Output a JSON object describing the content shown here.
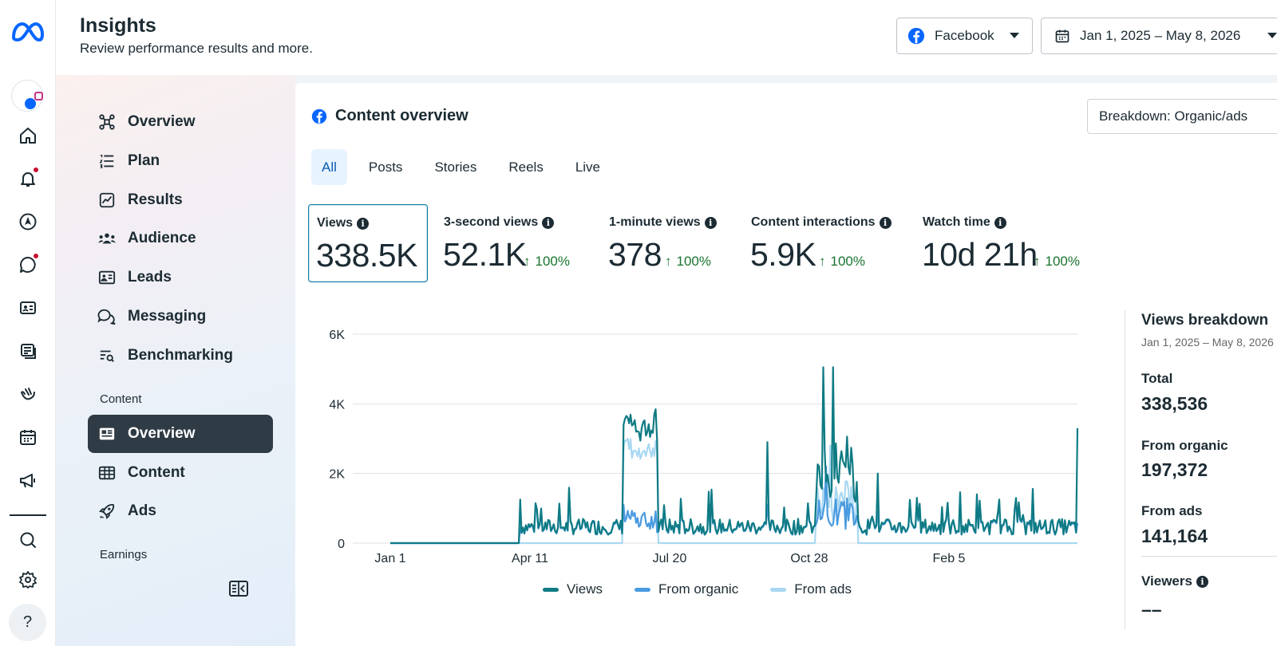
{
  "header": {
    "title": "Insights",
    "subtitle": "Review performance results and more.",
    "platform_label": "Facebook",
    "date_range": "Jan 1, 2025 – May 8, 2026"
  },
  "rail": {
    "icons": [
      "home-icon",
      "notifications-icon",
      "compass-icon",
      "chat-icon",
      "contact-card-icon",
      "posts-icon",
      "hand-icon",
      "calendar-icon",
      "megaphone-icon",
      "search-icon",
      "settings-icon"
    ],
    "help_label": "?"
  },
  "nav": {
    "items": [
      {
        "label": "Overview",
        "icon": "nodes-icon"
      },
      {
        "label": "Plan",
        "icon": "list-icon"
      },
      {
        "label": "Results",
        "icon": "line-chart-icon"
      },
      {
        "label": "Audience",
        "icon": "people-icon"
      },
      {
        "label": "Leads",
        "icon": "id-card-icon"
      },
      {
        "label": "Messaging",
        "icon": "chat-bubbles-icon"
      },
      {
        "label": "Benchmarking",
        "icon": "list-search-icon"
      }
    ],
    "content_section": "Content",
    "content_items": [
      {
        "label": "Overview",
        "icon": "card-icon",
        "active": true
      },
      {
        "label": "Content",
        "icon": "table-icon"
      },
      {
        "label": "Ads",
        "icon": "rocket-icon"
      }
    ],
    "earnings_section": "Earnings"
  },
  "card": {
    "title": "Content overview",
    "breakdown_label": "Breakdown: Organic/ads",
    "tabs": [
      "All",
      "Posts",
      "Stories",
      "Reels",
      "Live"
    ],
    "active_tab": "All"
  },
  "metrics": [
    {
      "label": "Views",
      "value": "338.5K",
      "change": "",
      "active": true
    },
    {
      "label": "3-second views",
      "value": "52.1K",
      "change": "100%"
    },
    {
      "label": "1-minute views",
      "value": "378",
      "change": "100%"
    },
    {
      "label": "Content interactions",
      "value": "5.9K",
      "change": "100%"
    },
    {
      "label": "Watch time",
      "value": "10d 21h",
      "change": "100%"
    }
  ],
  "colors": {
    "views": "#0f7b84",
    "organic": "#4a9be0",
    "ads": "#a9d8f2",
    "positive": "#19742f",
    "active_nav": "#2f3b45"
  },
  "chart_data": {
    "type": "line",
    "y_ticks": [
      "6K",
      "4K",
      "2K",
      "0"
    ],
    "x_ticks": [
      "Jan 1",
      "Apr 11",
      "Jul 20",
      "Oct 28",
      "Feb 5"
    ],
    "ylim": [
      0,
      6000
    ],
    "x_range": [
      "2025-01-01",
      "2026-05-08"
    ],
    "series": [
      {
        "name": "Views",
        "approx_key_points": [
          {
            "x": "2025-01-01",
            "y": 0
          },
          {
            "x": "2025-03-31",
            "y": 0
          },
          {
            "x": "2025-04-04",
            "y": 1250
          },
          {
            "x": "2025-06-17",
            "y": 3400
          },
          {
            "x": "2025-07-09",
            "y": 3700
          },
          {
            "x": "2025-09-28",
            "y": 2900
          },
          {
            "x": "2025-11-07",
            "y": 5050
          },
          {
            "x": "2025-11-14",
            "y": 5050
          },
          {
            "x": "2025-12-16",
            "y": 2000
          },
          {
            "x": "2026-05-08",
            "y": 3300
          }
        ]
      },
      {
        "name": "From organic",
        "approx_key_points": [
          {
            "x": "2025-06-17",
            "y": 1100
          },
          {
            "x": "2025-11-09",
            "y": 2200
          }
        ]
      },
      {
        "name": "From ads",
        "approx_key_points": [
          {
            "x": "2025-06-20",
            "y": 3000
          },
          {
            "x": "2025-07-09",
            "y": 2500
          },
          {
            "x": "2025-11-12",
            "y": 2800
          },
          {
            "x": "2025-12-01",
            "y": 1400
          }
        ]
      }
    ],
    "legend": [
      "Views",
      "From organic",
      "From ads"
    ],
    "legend_position": "bottom",
    "grid": true
  },
  "breakdown": {
    "title": "Views breakdown",
    "date": "Jan 1, 2025 – May 8, 2026",
    "total_label": "Total",
    "total_value": "338,536",
    "organic_label": "From organic",
    "organic_value": "197,372",
    "ads_label": "From ads",
    "ads_value": "141,164",
    "viewers_label": "Viewers",
    "viewers_value": "––"
  }
}
